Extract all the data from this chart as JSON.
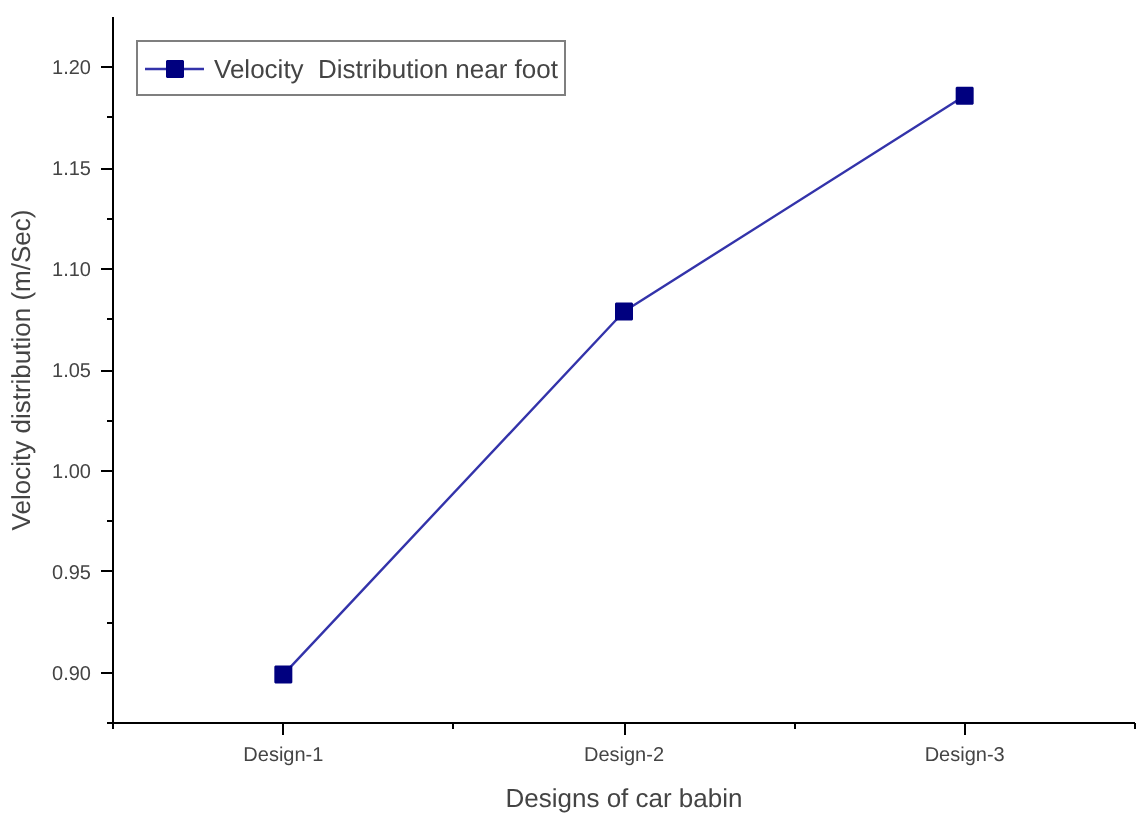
{
  "chart_data": {
    "type": "line",
    "xlabel": "Designs of car babin",
    "ylabel": "Velocity distribution (m/Sec)",
    "categories": [
      "Design-1",
      "Design-2",
      "Design-3"
    ],
    "series": [
      {
        "name": "Velocity  Distribution near foot",
        "color": "#00007f",
        "values": [
          0.899,
          1.079,
          1.186
        ]
      }
    ],
    "ylim": [
      0.875,
      1.225
    ],
    "yticks": [
      {
        "value": 0.9,
        "label": "0.90"
      },
      {
        "value": 0.95,
        "label": "0.95"
      },
      {
        "value": 1.0,
        "label": "1.00"
      },
      1.05,
      {
        "value": 1.1,
        "label": "1.10"
      },
      1.15,
      {
        "value": 1.2,
        "label": "1.20"
      }
    ],
    "marker": "square",
    "line_style": "solid",
    "legend": "top left",
    "grid": false
  }
}
